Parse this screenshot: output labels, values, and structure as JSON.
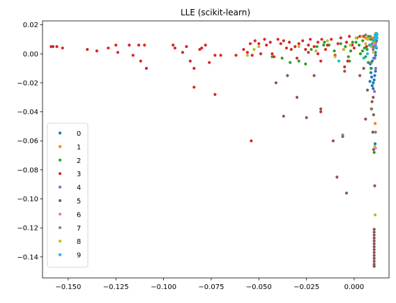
{
  "chart_data": {
    "type": "scatter",
    "title": "LLE (scikit-learn)",
    "xlabel": "",
    "ylabel": "",
    "xlim": [
      -0.1635,
      0.0183
    ],
    "ylim": [
      -0.1545,
      0.0227
    ],
    "x_ticks": [
      -0.15,
      -0.125,
      -0.1,
      -0.075,
      -0.05,
      -0.025,
      0.0
    ],
    "x_tick_labels": [
      "−0.150",
      "−0.125",
      "−0.100",
      "−0.075",
      "−0.050",
      "−0.025",
      "0.000"
    ],
    "y_ticks": [
      0.02,
      0.0,
      -0.02,
      -0.04,
      -0.06,
      -0.08,
      -0.1,
      -0.12,
      -0.14
    ],
    "y_tick_labels": [
      "0.02",
      "0.00",
      "−0.02",
      "−0.04",
      "−0.06",
      "−0.08",
      "−0.10",
      "−0.12",
      "−0.14"
    ],
    "grid": false,
    "legend_position": "lower-left",
    "series": [
      {
        "name": "0",
        "color": "#1f77b4",
        "points": [
          [
            0.0105,
            -0.018
          ],
          [
            0.01,
            -0.02
          ],
          [
            0.0095,
            -0.022
          ],
          [
            0.0108,
            -0.015
          ],
          [
            0.0112,
            -0.012
          ],
          [
            0.009,
            -0.01
          ],
          [
            0.0085,
            -0.007
          ],
          [
            0.0095,
            -0.005
          ],
          [
            0.0103,
            -0.003
          ],
          [
            0.0112,
            -0.001
          ],
          [
            0.0117,
            0.004
          ],
          [
            0.0112,
            0.006
          ],
          [
            0.011,
            -0.062
          ],
          [
            0.0117,
            0.009
          ],
          [
            0.012,
            0.011
          ],
          [
            0.0092,
            -0.016
          ],
          [
            0.0088,
            -0.013
          ],
          [
            0.01,
            -0.024
          ],
          [
            0.0112,
            0.001
          ],
          [
            0.0083,
            -0.019
          ]
        ]
      },
      {
        "name": "1",
        "color": "#ff7f0e",
        "points": [
          [
            0.0114,
            0.013
          ],
          [
            0.0112,
            0.012
          ],
          [
            0.01,
            0.011
          ],
          [
            0.011,
            -0.048
          ],
          [
            0.0082,
            0.01
          ],
          [
            0.006,
            0.011
          ],
          [
            0.0113,
            0.014
          ],
          [
            0.0116,
            0.013
          ]
        ]
      },
      {
        "name": "2",
        "color": "#2ca02c",
        "points": [
          [
            0.0105,
            -0.068
          ],
          [
            0.0088,
            -0.01
          ],
          [
            0.0074,
            -0.006
          ],
          [
            0.006,
            -0.002
          ],
          [
            0.0054,
            0.004
          ],
          [
            0.0044,
            0.002
          ],
          [
            0.0026,
            0.006
          ],
          [
            0.001,
            0.008
          ],
          [
            -0.0008,
            0.008
          ],
          [
            -0.0018,
            0.002
          ],
          [
            -0.003,
            -0.002
          ],
          [
            -0.0046,
            0.005
          ],
          [
            -0.007,
            0.007
          ],
          [
            -0.0104,
            0.002
          ],
          [
            -0.0132,
            0.006
          ],
          [
            -0.0156,
            0.008
          ],
          [
            -0.0195,
            0.005
          ],
          [
            -0.0225,
            0.003
          ],
          [
            -0.0255,
            -0.007
          ],
          [
            -0.029,
            -0.005
          ],
          [
            -0.0336,
            -0.006
          ],
          [
            -0.0378,
            -0.003
          ],
          [
            -0.043,
            -0.002
          ],
          [
            -0.0024,
            -0.005
          ],
          [
            0.0033,
            0.0
          ],
          [
            0.0068,
            0.003
          ],
          [
            0.0098,
            0.005
          ],
          [
            0.0075,
            0.012
          ],
          [
            0.0045,
            0.009
          ],
          [
            -0.016,
            0.006
          ],
          [
            0.011,
            0.0095
          ],
          [
            0.009,
            0.01
          ]
        ]
      },
      {
        "name": "3",
        "color": "#d62728",
        "points": [
          [
            -0.159,
            0.005
          ],
          [
            -0.158,
            0.005
          ],
          [
            -0.156,
            0.005
          ],
          [
            -0.153,
            0.004
          ],
          [
            -0.14,
            0.003
          ],
          [
            -0.135,
            0.002
          ],
          [
            -0.129,
            0.004
          ],
          [
            -0.125,
            0.006
          ],
          [
            -0.124,
            0.001
          ],
          [
            -0.118,
            0.006
          ],
          [
            -0.116,
            -0.001
          ],
          [
            -0.113,
            0.006
          ],
          [
            -0.112,
            -0.005
          ],
          [
            -0.11,
            0.006
          ],
          [
            -0.109,
            -0.01
          ],
          [
            -0.095,
            0.006
          ],
          [
            -0.094,
            0.004
          ],
          [
            -0.09,
            0.001
          ],
          [
            -0.088,
            0.005
          ],
          [
            -0.086,
            -0.005
          ],
          [
            -0.084,
            -0.01
          ],
          [
            -0.08,
            0.004
          ],
          [
            -0.078,
            0.006
          ],
          [
            -0.076,
            -0.006
          ],
          [
            -0.07,
            -0.001
          ],
          [
            -0.073,
            -0.001
          ],
          [
            -0.062,
            -0.001
          ],
          [
            -0.058,
            0.003
          ],
          [
            -0.056,
            0.001
          ],
          [
            -0.0545,
            0.007
          ],
          [
            -0.0535,
            -0.001
          ],
          [
            -0.052,
            0.009
          ],
          [
            -0.05,
            0.007
          ],
          [
            -0.049,
            0.0
          ],
          [
            -0.047,
            0.01
          ],
          [
            -0.046,
            0.006
          ],
          [
            -0.044,
            0.008
          ],
          [
            -0.043,
            0.0
          ],
          [
            -0.042,
            -0.002
          ],
          [
            -0.04,
            0.01
          ],
          [
            -0.0385,
            0.007
          ],
          [
            -0.037,
            0.009
          ],
          [
            -0.0355,
            0.004
          ],
          [
            -0.034,
            0.008
          ],
          [
            -0.033,
            0.003
          ],
          [
            -0.031,
            0.005
          ],
          [
            -0.029,
            0.007
          ],
          [
            -0.027,
            0.009
          ],
          [
            -0.0255,
            0.003
          ],
          [
            -0.024,
            0.006
          ],
          [
            -0.023,
            0.01
          ],
          [
            -0.021,
            0.005
          ],
          [
            -0.019,
            0.008
          ],
          [
            -0.017,
            0.01
          ],
          [
            -0.015,
            0.003
          ],
          [
            -0.014,
            0.006
          ],
          [
            -0.012,
            0.01
          ],
          [
            -0.01,
            -0.001
          ],
          [
            -0.0085,
            0.007
          ],
          [
            -0.007,
            0.011
          ],
          [
            -0.0055,
            0.003
          ],
          [
            -0.004,
            0.008
          ],
          [
            -0.0025,
            0.012
          ],
          [
            -0.001,
            0.006
          ],
          [
            0.0,
            0.004
          ],
          [
            0.0015,
            0.011
          ],
          [
            0.003,
            0.012
          ],
          [
            0.0048,
            0.012
          ],
          [
            0.0065,
            0.005
          ],
          [
            -0.024,
            0.001
          ],
          [
            -0.03,
            -0.003
          ],
          [
            -0.0175,
            -0.005
          ],
          [
            -0.005,
            -0.009
          ],
          [
            -0.0034,
            -0.005
          ],
          [
            -0.019,
            0.0
          ],
          [
            -0.081,
            0.003
          ],
          [
            -0.084,
            -0.023
          ],
          [
            -0.073,
            -0.028
          ],
          [
            -0.054,
            -0.06
          ],
          [
            -0.0175,
            -0.04
          ]
        ]
      },
      {
        "name": "4",
        "color": "#9467bd",
        "points": [
          [
            0.0115,
            0.008
          ],
          [
            0.0112,
            0.005
          ],
          [
            0.0109,
            -0.003
          ],
          [
            0.0113,
            -0.01
          ],
          [
            0.0107,
            -0.026
          ],
          [
            0.01,
            0.003
          ],
          [
            0.0095,
            0.007
          ]
        ]
      },
      {
        "name": "5",
        "color": "#8c564b",
        "points": [
          [
            0.0105,
            -0.1465
          ],
          [
            0.0105,
            -0.145
          ],
          [
            0.0105,
            -0.143
          ],
          [
            0.0105,
            -0.141
          ],
          [
            0.0105,
            -0.139
          ],
          [
            0.0105,
            -0.137
          ],
          [
            0.0105,
            -0.135
          ],
          [
            0.0105,
            -0.133
          ],
          [
            0.0105,
            -0.131
          ],
          [
            0.0105,
            -0.129
          ],
          [
            0.0105,
            -0.127
          ],
          [
            0.0105,
            -0.125
          ],
          [
            0.0105,
            -0.123
          ],
          [
            0.0105,
            -0.121
          ],
          [
            0.0108,
            -0.091
          ],
          [
            0.0102,
            -0.066
          ],
          [
            0.0098,
            -0.054
          ],
          [
            0.009,
            -0.038
          ],
          [
            0.006,
            -0.045
          ],
          [
            -0.009,
            -0.085
          ],
          [
            -0.004,
            -0.096
          ],
          [
            -0.006,
            -0.057
          ],
          [
            -0.0175,
            -0.038
          ],
          [
            -0.011,
            -0.06
          ],
          [
            -0.021,
            -0.015
          ],
          [
            -0.025,
            -0.044
          ],
          [
            -0.03,
            -0.03
          ],
          [
            -0.035,
            -0.015
          ],
          [
            -0.037,
            -0.043
          ],
          [
            -0.041,
            -0.02
          ],
          [
            0.003,
            -0.015
          ],
          [
            0.007,
            -0.025
          ],
          [
            0.005,
            -0.01
          ],
          [
            -0.005,
            -0.012
          ],
          [
            0.0094,
            -0.033
          ],
          [
            0.0102,
            -0.042
          ],
          [
            0.01,
            -0.03
          ]
        ]
      },
      {
        "name": "6",
        "color": "#e377c2",
        "points": [
          [
            0.0112,
            -0.065
          ],
          [
            0.011,
            0.007
          ],
          [
            0.0105,
            0.01
          ]
        ]
      },
      {
        "name": "7",
        "color": "#7f7f7f",
        "points": [
          [
            0.0112,
            0.012
          ],
          [
            0.0108,
            0.008
          ],
          [
            0.01,
            0.004
          ],
          [
            0.009,
            -0.006
          ],
          [
            0.0085,
            0.012
          ],
          [
            0.006,
            0.013
          ],
          [
            0.0112,
            -0.054
          ],
          [
            -0.006,
            -0.056
          ],
          [
            0.0092,
            -0.038
          ],
          [
            0.008,
            0.006
          ]
        ]
      },
      {
        "name": "8",
        "color": "#bcbd22",
        "points": [
          [
            0.011,
            -0.111
          ],
          [
            0.0108,
            -0.064
          ],
          [
            0.0104,
            0.008
          ],
          [
            0.009,
            0.005
          ],
          [
            0.007,
            0.01
          ],
          [
            0.004,
            0.012
          ],
          [
            0.001,
            0.011
          ],
          [
            -0.002,
            0.006
          ],
          [
            -0.0055,
            0.003
          ],
          [
            -0.01,
            -0.002
          ],
          [
            -0.014,
            0.009
          ],
          [
            -0.02,
            0.002
          ],
          [
            -0.029,
            0.005
          ],
          [
            -0.05,
            0.005
          ],
          [
            -0.0525,
            0.003
          ],
          [
            -0.056,
            -0.001
          ],
          [
            0.006,
            0.007
          ],
          [
            0.0102,
            0.001
          ]
        ]
      },
      {
        "name": "9",
        "color": "#17becf",
        "points": [
          [
            0.0118,
            0.014
          ],
          [
            0.0116,
            0.012
          ],
          [
            0.012,
            0.013
          ],
          [
            0.011,
            0.01
          ],
          [
            0.01,
            0.009
          ],
          [
            0.0085,
            0.006
          ],
          [
            0.007,
            0.0
          ],
          [
            0.005,
            -0.003
          ],
          [
            -0.008,
            -0.005
          ],
          [
            0.0115,
            0.0045
          ],
          [
            0.0119,
            0.011
          ],
          [
            0.011,
            0.013
          ]
        ]
      }
    ]
  }
}
